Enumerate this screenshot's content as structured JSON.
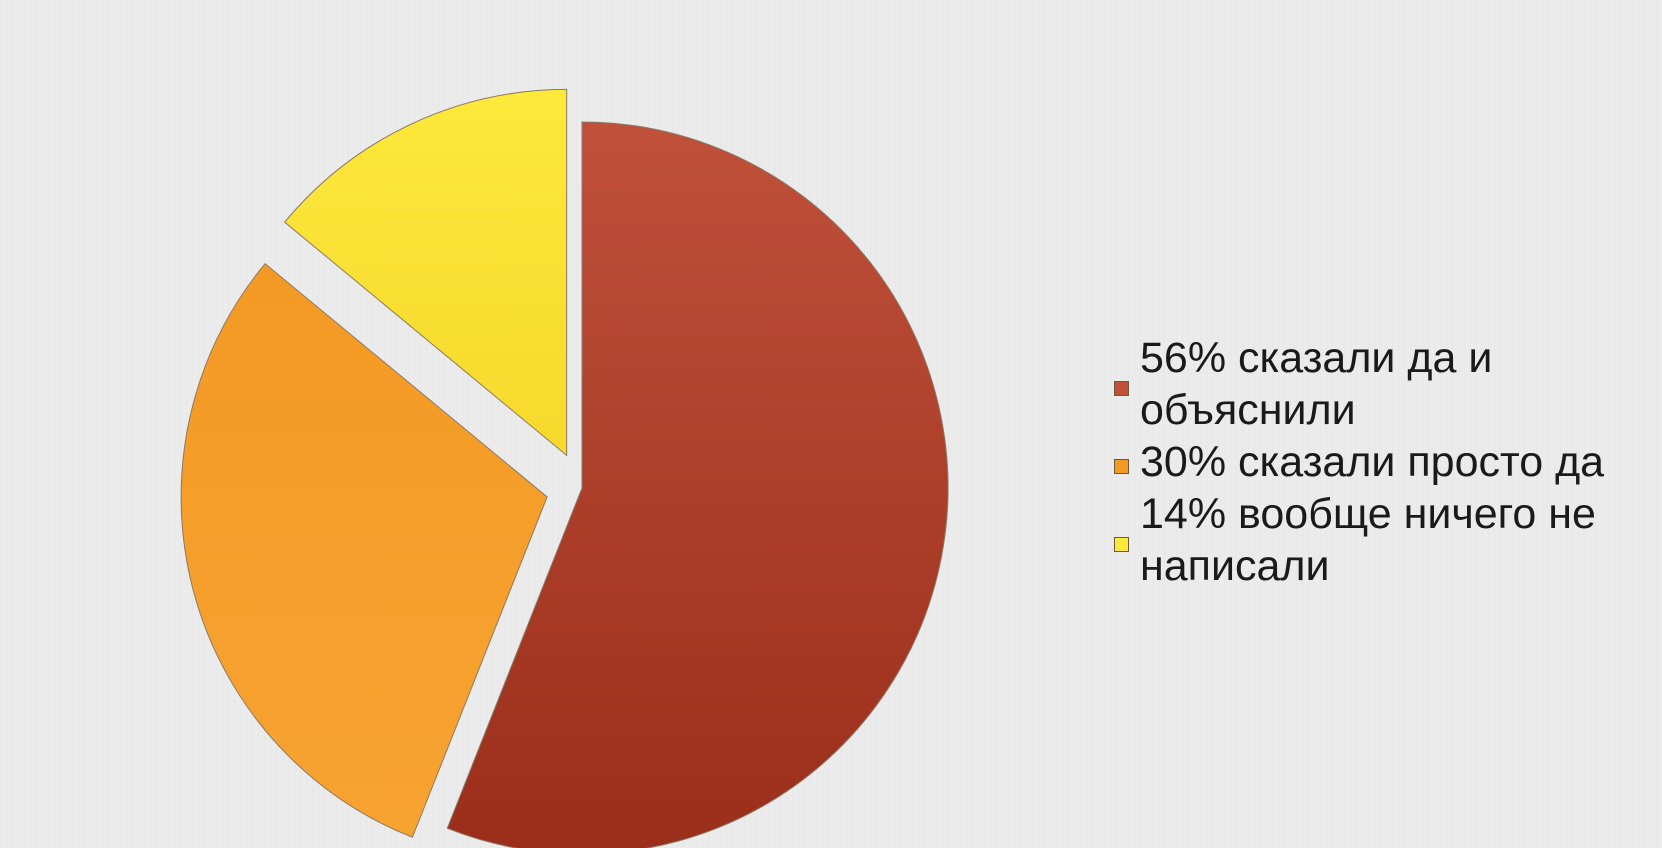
{
  "chart_data": {
    "type": "pie",
    "title": "",
    "slices": [
      {
        "label": "56% сказали да и объяснили",
        "value": 56,
        "color": "#c0503a",
        "color_dark": "#9a2e1a"
      },
      {
        "label": "30% сказали просто да",
        "value": 30,
        "color": "#f39a24",
        "color_dark": "#f7a332"
      },
      {
        "label": "14% вообще ничего не написали",
        "value": 14,
        "color": "#fde83c",
        "color_dark": "#f7d92c"
      }
    ],
    "start_angle_deg": 0,
    "direction": "clockwise",
    "exploded": true,
    "legend_position": "right"
  }
}
